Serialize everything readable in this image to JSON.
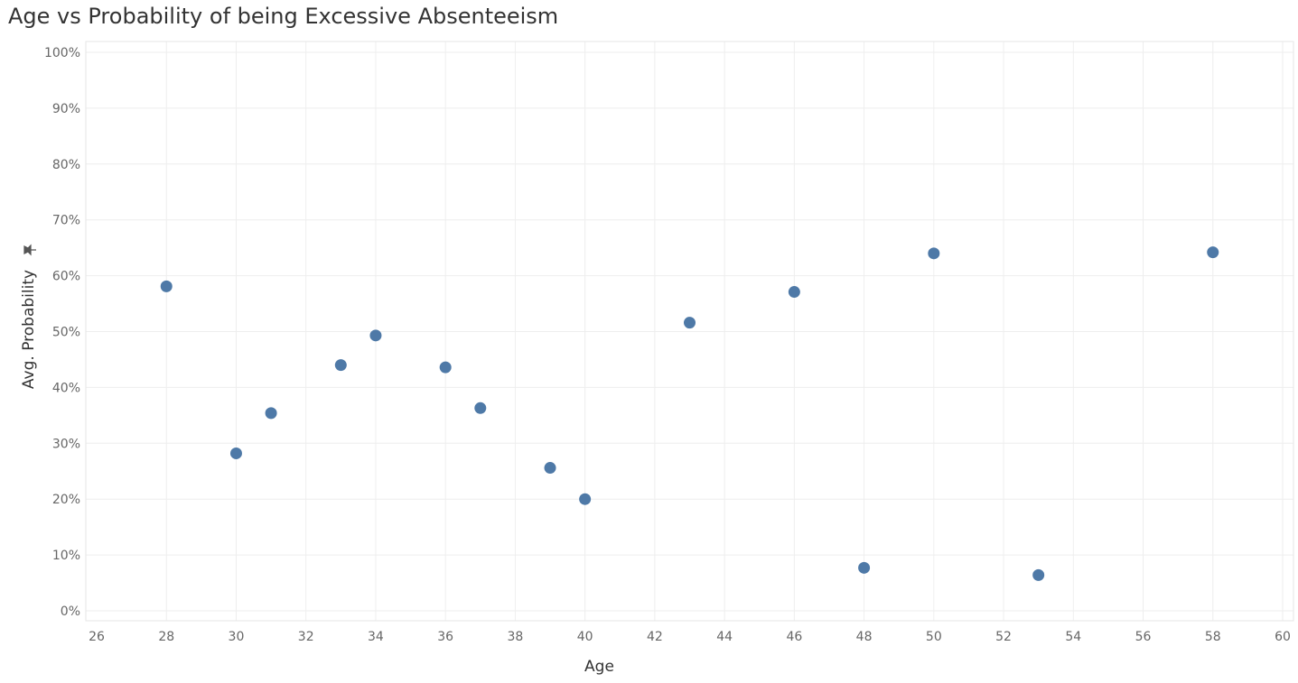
{
  "chart_data": {
    "type": "scatter",
    "title": "Age vs Probability of being Excessive Absenteeism",
    "xlabel": "Age",
    "ylabel": "Avg. Probability",
    "ylabel_icon": "pin-icon",
    "xlim": [
      26,
      60
    ],
    "ylim": [
      0,
      1
    ],
    "x_ticks": [
      26,
      28,
      30,
      32,
      34,
      36,
      38,
      40,
      42,
      44,
      46,
      48,
      50,
      52,
      54,
      56,
      58,
      60
    ],
    "y_ticks": [
      0,
      0.1,
      0.2,
      0.3,
      0.4,
      0.5,
      0.6,
      0.7,
      0.8,
      0.9,
      1.0
    ],
    "y_tick_labels": [
      "0%",
      "10%",
      "20%",
      "30%",
      "40%",
      "50%",
      "60%",
      "70%",
      "80%",
      "90%",
      "100%"
    ],
    "grid": true,
    "marker_color": "#4e79a7",
    "points": [
      {
        "x": 28,
        "y": 0.581
      },
      {
        "x": 30,
        "y": 0.282
      },
      {
        "x": 31,
        "y": 0.354
      },
      {
        "x": 33,
        "y": 0.44
      },
      {
        "x": 34,
        "y": 0.493
      },
      {
        "x": 36,
        "y": 0.436
      },
      {
        "x": 37,
        "y": 0.363
      },
      {
        "x": 39,
        "y": 0.256
      },
      {
        "x": 40,
        "y": 0.2
      },
      {
        "x": 43,
        "y": 0.516
      },
      {
        "x": 46,
        "y": 0.571
      },
      {
        "x": 48,
        "y": 0.077
      },
      {
        "x": 50,
        "y": 0.64
      },
      {
        "x": 53,
        "y": 0.064
      },
      {
        "x": 58,
        "y": 0.642
      }
    ]
  }
}
